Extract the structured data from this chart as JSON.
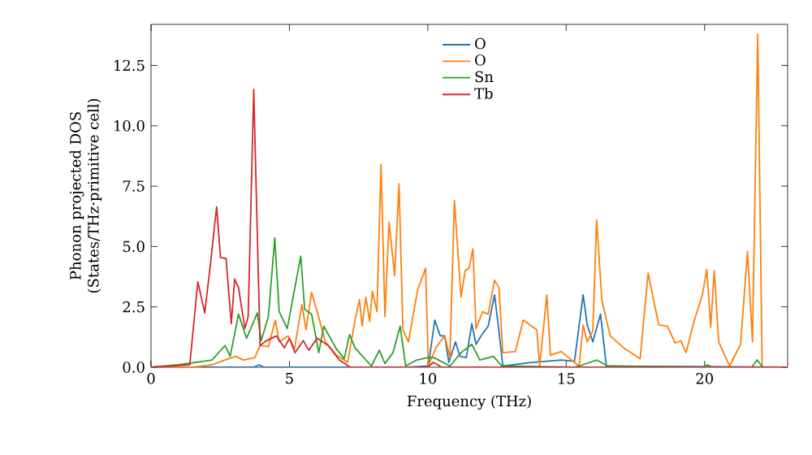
{
  "chart_data": {
    "type": "line",
    "xlabel": "Frequency (THz)",
    "ylabel": "Phonon projected DOS\n(States/THz·primitive cell)",
    "xlim": [
      0,
      23
    ],
    "ylim": [
      0,
      14.2
    ],
    "xticks": [
      0,
      5,
      10,
      15,
      20
    ],
    "yticks": [
      {
        "value": 0,
        "label": "0.0"
      },
      {
        "value": 2.5,
        "label": "2.5"
      },
      {
        "value": 5,
        "label": "5.0"
      },
      {
        "value": 7.5,
        "label": "7.5"
      },
      {
        "value": 10,
        "label": "10.0"
      },
      {
        "value": 12.5,
        "label": "12.5"
      }
    ],
    "legend": "top",
    "grid": false,
    "series": [
      {
        "name": "O",
        "color": "#1f77b4",
        "x": [
          0,
          3.7,
          3.9,
          4.1,
          9.24,
          10.02,
          10.25,
          10.45,
          10.61,
          10.76,
          11.0,
          11.16,
          11.39,
          11.59,
          11.74,
          11.98,
          12.18,
          12.41,
          12.57,
          12.71,
          13.75,
          14.82,
          15.3,
          15.61,
          15.76,
          15.96,
          16.24,
          16.45,
          23
        ],
        "values": [
          0,
          0,
          0.1,
          0,
          0,
          0.05,
          1.95,
          1.3,
          1.3,
          0.2,
          1.05,
          0.45,
          0.4,
          1.8,
          0.95,
          1.4,
          1.7,
          3.0,
          1.5,
          0.05,
          0.2,
          0.3,
          0.25,
          3.0,
          1.75,
          1.05,
          2.2,
          0.05,
          0
        ]
      },
      {
        "name": "O",
        "color": "#ff7f0e",
        "x": [
          0,
          1.5,
          2.2,
          2.67,
          3.06,
          3.35,
          3.75,
          3.94,
          4.24,
          4.49,
          4.63,
          4.96,
          5.18,
          5.45,
          5.6,
          5.8,
          6.0,
          6.3,
          6.7,
          7.1,
          7.37,
          7.53,
          7.63,
          7.76,
          7.9,
          8.0,
          8.16,
          8.31,
          8.45,
          8.6,
          8.8,
          8.96,
          9.1,
          9.3,
          9.63,
          9.92,
          10.02,
          10.31,
          10.61,
          10.8,
          10.96,
          11.2,
          11.35,
          11.49,
          11.63,
          11.74,
          11.98,
          12.18,
          12.41,
          12.57,
          12.71,
          13.16,
          13.45,
          13.94,
          14.04,
          14.3,
          14.43,
          14.82,
          15.3,
          15.47,
          15.61,
          15.76,
          15.96,
          16.1,
          16.29,
          16.59,
          17.08,
          17.67,
          17.96,
          18.16,
          18.35,
          18.65,
          18.94,
          19.14,
          19.33,
          19.63,
          19.92,
          20.08,
          20.22,
          20.35,
          20.51,
          20.9,
          21.3,
          21.55,
          21.73,
          21.92,
          22.08,
          23
        ],
        "values": [
          0,
          0,
          0.1,
          0.3,
          0.45,
          0.3,
          0.4,
          0.9,
          0.85,
          1.95,
          1.05,
          1.3,
          0.75,
          2.6,
          1.55,
          3.1,
          2.3,
          1.05,
          0.5,
          0.2,
          1.95,
          2.8,
          1.7,
          2.9,
          1.9,
          3.15,
          2.3,
          8.4,
          2.1,
          6.0,
          3.8,
          7.6,
          1.55,
          1.05,
          3.2,
          4.1,
          0.05,
          0.85,
          1.3,
          0.4,
          6.9,
          2.9,
          4.0,
          4.1,
          4.9,
          1.6,
          2.3,
          2.2,
          3.6,
          3.3,
          0.6,
          0.65,
          1.95,
          1.55,
          0.05,
          3.0,
          0.5,
          0.65,
          0.2,
          0.05,
          1.75,
          1.05,
          1.5,
          6.1,
          2.75,
          1.3,
          0.8,
          0.35,
          3.9,
          2.75,
          1.75,
          1.7,
          1.0,
          1.1,
          0.6,
          1.95,
          3.0,
          4.05,
          1.65,
          4.0,
          1.05,
          0.05,
          0.95,
          4.8,
          1.05,
          13.8,
          0,
          0
        ]
      },
      {
        "name": "Sn",
        "color": "#2ca02c",
        "x": [
          0,
          1.0,
          2.2,
          2.67,
          2.86,
          3.16,
          3.45,
          3.84,
          3.98,
          4.24,
          4.47,
          4.63,
          4.92,
          5.41,
          5.55,
          5.8,
          6.06,
          6.24,
          6.7,
          6.98,
          7.17,
          7.37,
          7.96,
          8.25,
          8.45,
          8.74,
          9.0,
          9.2,
          9.6,
          10.0,
          10.22,
          10.8,
          11.2,
          11.59,
          11.88,
          12.37,
          12.67,
          15.3,
          15.6,
          16.1,
          16.5,
          19.9,
          20.1,
          20.3,
          21.7,
          21.9,
          22.1,
          23
        ],
        "values": [
          0,
          0.1,
          0.3,
          0.9,
          0.45,
          2.2,
          1.2,
          2.25,
          1.1,
          2.1,
          5.35,
          2.3,
          1.6,
          4.6,
          2.4,
          2.2,
          0.6,
          1.7,
          0.75,
          0.35,
          1.35,
          0.8,
          0.05,
          0.7,
          0.15,
          0.6,
          1.7,
          0.05,
          0.3,
          0.4,
          0.4,
          0.05,
          0.6,
          0.95,
          0.3,
          0.45,
          0.05,
          0,
          0.1,
          0.3,
          0.05,
          0,
          0.1,
          0,
          0,
          0.3,
          0,
          0
        ]
      },
      {
        "name": "Tb",
        "color": "#d62728",
        "x": [
          0,
          1.4,
          1.69,
          1.94,
          2.14,
          2.37,
          2.51,
          2.71,
          2.9,
          3.02,
          3.16,
          3.39,
          3.51,
          3.71,
          3.94,
          4.14,
          4.53,
          4.82,
          5.0,
          5.2,
          5.5,
          5.7,
          6.0,
          6.4,
          6.8,
          7.2,
          10.0,
          10.2,
          10.5,
          23
        ],
        "values": [
          0,
          0.1,
          3.54,
          2.25,
          4.2,
          6.64,
          4.55,
          4.5,
          1.8,
          3.65,
          3.3,
          1.6,
          2.1,
          11.5,
          0.9,
          1.08,
          1.3,
          0.8,
          1.2,
          0.6,
          1.1,
          0.7,
          1.2,
          0.9,
          0.3,
          0,
          0,
          0.2,
          0,
          0
        ]
      }
    ]
  }
}
